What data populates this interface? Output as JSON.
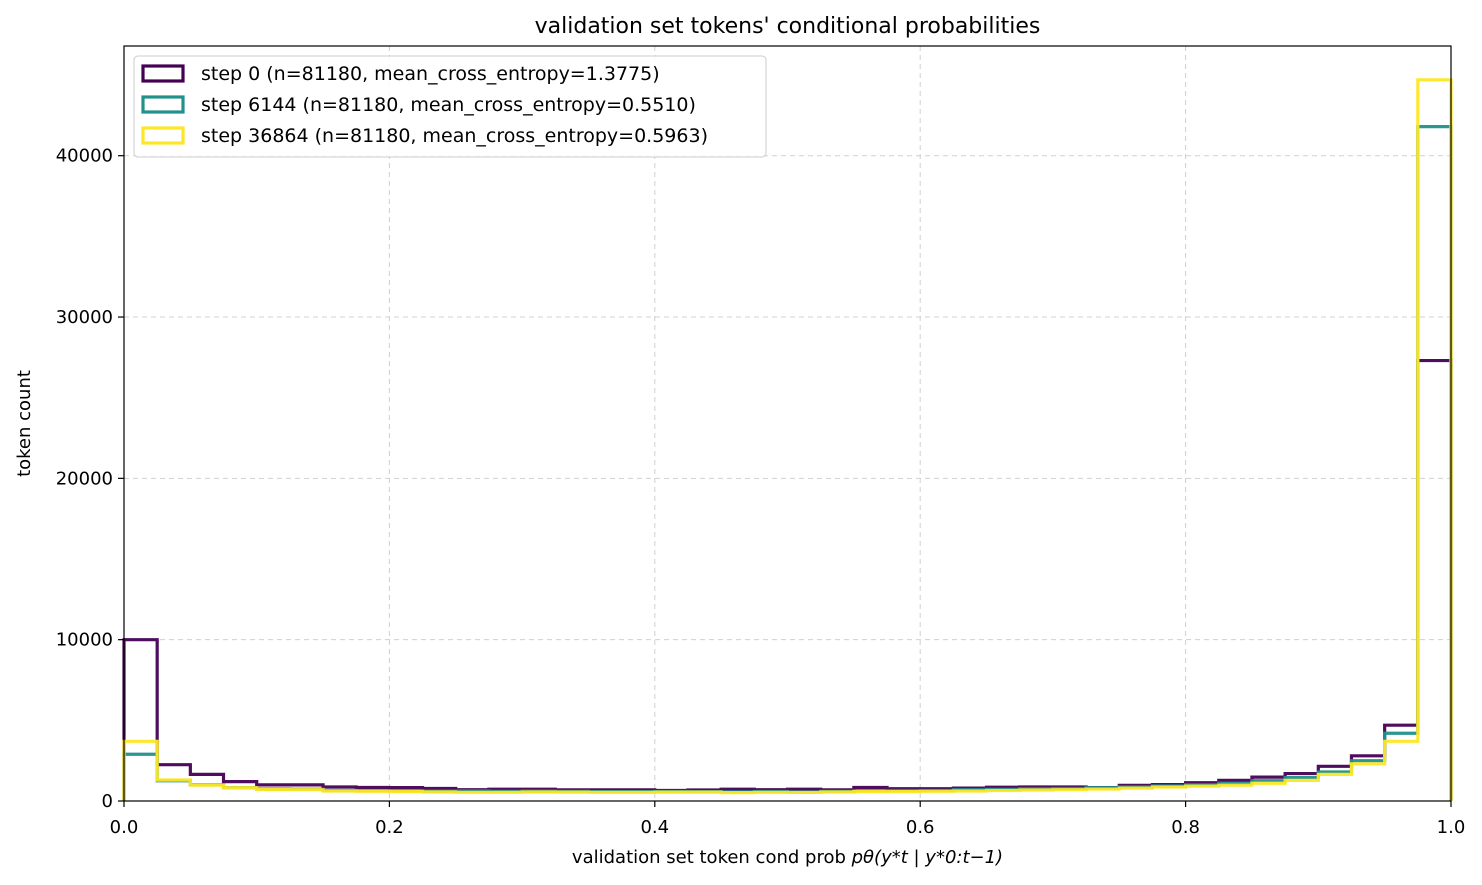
{
  "chart_data": {
    "type": "step-histogram",
    "title": "validation set tokens' conditional probabilities",
    "xlabel_prefix": "validation set token cond prob ",
    "xlabel_math": "pθ(y*t | y*0:t−1)",
    "ylabel": "token count",
    "xlim": [
      0.0,
      1.0
    ],
    "ylim": [
      0,
      46800
    ],
    "x_ticks": [
      0.0,
      0.2,
      0.4,
      0.6,
      0.8,
      1.0
    ],
    "x_tick_labels": [
      "0.0",
      "0.2",
      "0.4",
      "0.6",
      "0.8",
      "1.0"
    ],
    "y_ticks": [
      0,
      10000,
      20000,
      30000,
      40000
    ],
    "y_tick_labels": [
      "0",
      "10000",
      "20000",
      "30000",
      "40000"
    ],
    "grid": true,
    "legend_position": "top-left",
    "bin_edges_count": 41,
    "series": [
      {
        "name": "step 0 (n=81180, mean_cross_entropy=1.3775)",
        "color": "#440154",
        "values": [
          10000,
          2250,
          1650,
          1200,
          1000,
          1000,
          870,
          840,
          830,
          780,
          700,
          730,
          730,
          690,
          690,
          690,
          650,
          680,
          730,
          700,
          730,
          690,
          840,
          760,
          760,
          800,
          850,
          870,
          870,
          830,
          970,
          1020,
          1130,
          1280,
          1480,
          1700,
          2150,
          2800,
          4700,
          27300
        ]
      },
      {
        "name": "step 6144 (n=81180, mean_cross_entropy=0.5510)",
        "color": "#21918c",
        "values": [
          2900,
          1250,
          1000,
          830,
          750,
          730,
          650,
          640,
          640,
          610,
          620,
          600,
          610,
          600,
          580,
          580,
          590,
          580,
          570,
          590,
          560,
          600,
          640,
          650,
          650,
          700,
          720,
          750,
          780,
          820,
          870,
          930,
          1000,
          1100,
          1260,
          1450,
          1800,
          2500,
          4200,
          41800
        ]
      },
      {
        "name": "step 36864 (n=81180, mean_cross_entropy=0.5963)",
        "color": "#fde725",
        "values": [
          3700,
          1300,
          980,
          820,
          720,
          700,
          620,
          600,
          590,
          560,
          540,
          540,
          560,
          550,
          540,
          540,
          550,
          550,
          520,
          540,
          530,
          560,
          580,
          580,
          600,
          620,
          650,
          680,
          700,
          740,
          800,
          870,
          920,
          980,
          1100,
          1280,
          1650,
          2300,
          3700,
          44700
        ]
      }
    ]
  }
}
